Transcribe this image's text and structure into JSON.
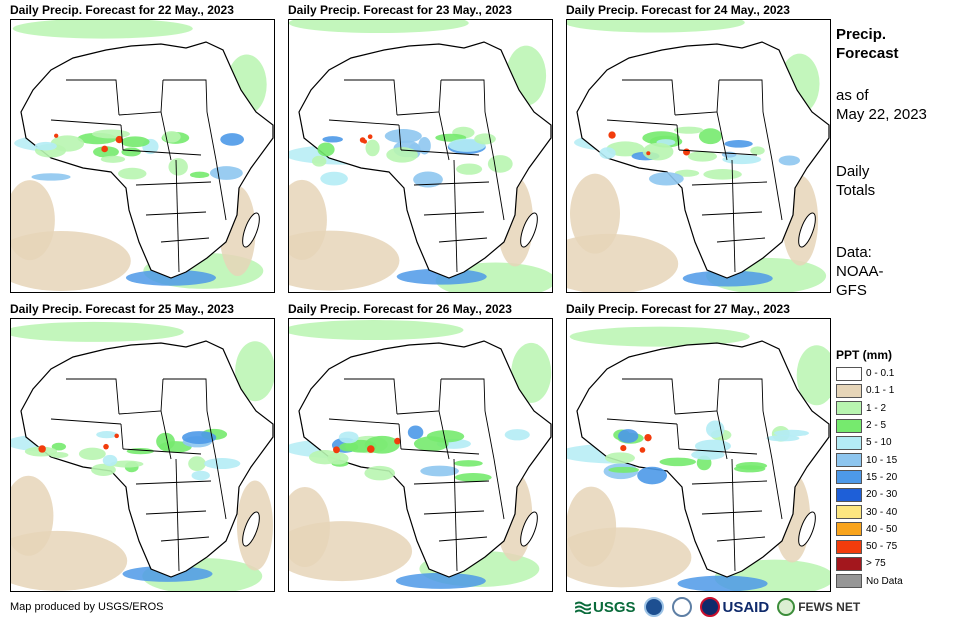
{
  "panels": [
    {
      "title": "Daily Precip. Forecast for 22 May., 2023"
    },
    {
      "title": "Daily Precip. Forecast for 23 May., 2023"
    },
    {
      "title": "Daily Precip. Forecast for 24 May., 2023"
    },
    {
      "title": "Daily Precip. Forecast for 25 May., 2023"
    },
    {
      "title": "Daily Precip. Forecast for 26 May., 2023"
    },
    {
      "title": "Daily Precip. Forecast for 27 May., 2023"
    }
  ],
  "sidebar": {
    "title_line1": "Precip.",
    "title_line2": "Forecast",
    "asof_line1": "as of",
    "asof_line2": "May 22, 2023",
    "totals_line1": "Daily",
    "totals_line2": "Totals",
    "data_line1": "Data:",
    "data_line2": "NOAA-",
    "data_line3": "GFS"
  },
  "legend": {
    "title": "PPT (mm)",
    "items": [
      {
        "label": "0 - 0.1",
        "color": "#ffffff"
      },
      {
        "label": "0.1 - 1",
        "color": "#e6d5b8"
      },
      {
        "label": "1 - 2",
        "color": "#b8f5b0"
      },
      {
        "label": "2 - 5",
        "color": "#76ea6e"
      },
      {
        "label": "5 - 10",
        "color": "#b4ecf5"
      },
      {
        "label": "10 - 15",
        "color": "#8ec6ef"
      },
      {
        "label": "15 - 20",
        "color": "#4d99e8"
      },
      {
        "label": "20 - 30",
        "color": "#1e5fd8"
      },
      {
        "label": "30 - 40",
        "color": "#fce680"
      },
      {
        "label": "40 - 50",
        "color": "#f9a41c"
      },
      {
        "label": "50 - 75",
        "color": "#f23c0c"
      },
      {
        "label": "> 75",
        "color": "#a3171d"
      },
      {
        "label": "No Data",
        "color": "#969696"
      }
    ]
  },
  "credit": "Map produced by USGS/EROS",
  "logos": {
    "usgs": "USGS",
    "usaid": "USAID",
    "fews": "FEWS NET"
  }
}
